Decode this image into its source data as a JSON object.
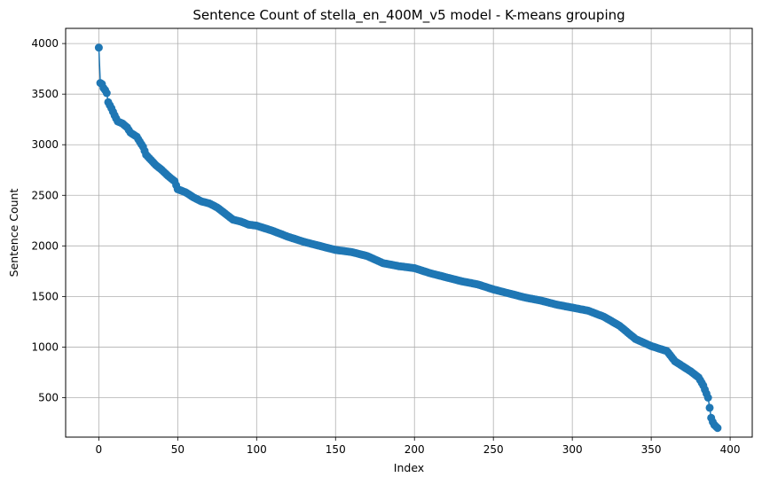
{
  "chart_data": {
    "type": "line",
    "title": "Sentence Count of stella_en_400M_v5 model - K-means grouping",
    "xlabel": "Index",
    "ylabel": "Sentence Count",
    "xlim": [
      -21,
      414
    ],
    "ylim": [
      110,
      4150
    ],
    "xticks": [
      0,
      50,
      100,
      150,
      200,
      250,
      300,
      350,
      400
    ],
    "yticks": [
      500,
      1000,
      1500,
      2000,
      2500,
      3000,
      3500,
      4000
    ],
    "grid": true,
    "series_color": "#1f77b4",
    "marker": "circle",
    "keypoints": [
      [
        0,
        3960
      ],
      [
        1,
        3610
      ],
      [
        2,
        3600
      ],
      [
        3,
        3560
      ],
      [
        4,
        3540
      ],
      [
        5,
        3510
      ],
      [
        6,
        3420
      ],
      [
        8,
        3360
      ],
      [
        10,
        3290
      ],
      [
        12,
        3230
      ],
      [
        15,
        3210
      ],
      [
        18,
        3170
      ],
      [
        20,
        3120
      ],
      [
        24,
        3080
      ],
      [
        26,
        3030
      ],
      [
        28,
        2980
      ],
      [
        30,
        2900
      ],
      [
        33,
        2850
      ],
      [
        36,
        2800
      ],
      [
        40,
        2750
      ],
      [
        44,
        2690
      ],
      [
        48,
        2640
      ],
      [
        50,
        2560
      ],
      [
        55,
        2530
      ],
      [
        60,
        2480
      ],
      [
        65,
        2440
      ],
      [
        70,
        2420
      ],
      [
        75,
        2380
      ],
      [
        80,
        2320
      ],
      [
        85,
        2260
      ],
      [
        90,
        2240
      ],
      [
        95,
        2210
      ],
      [
        100,
        2200
      ],
      [
        110,
        2150
      ],
      [
        120,
        2090
      ],
      [
        130,
        2040
      ],
      [
        140,
        2000
      ],
      [
        150,
        1960
      ],
      [
        160,
        1940
      ],
      [
        170,
        1900
      ],
      [
        180,
        1830
      ],
      [
        190,
        1800
      ],
      [
        200,
        1780
      ],
      [
        210,
        1730
      ],
      [
        220,
        1690
      ],
      [
        230,
        1650
      ],
      [
        240,
        1620
      ],
      [
        250,
        1570
      ],
      [
        260,
        1530
      ],
      [
        270,
        1490
      ],
      [
        280,
        1460
      ],
      [
        290,
        1420
      ],
      [
        300,
        1390
      ],
      [
        310,
        1360
      ],
      [
        320,
        1300
      ],
      [
        330,
        1210
      ],
      [
        340,
        1080
      ],
      [
        350,
        1010
      ],
      [
        360,
        960
      ],
      [
        365,
        860
      ],
      [
        370,
        810
      ],
      [
        375,
        760
      ],
      [
        380,
        700
      ],
      [
        383,
        620
      ],
      [
        386,
        500
      ],
      [
        388,
        300
      ],
      [
        389,
        260
      ],
      [
        390,
        230
      ],
      [
        392,
        200
      ]
    ]
  }
}
